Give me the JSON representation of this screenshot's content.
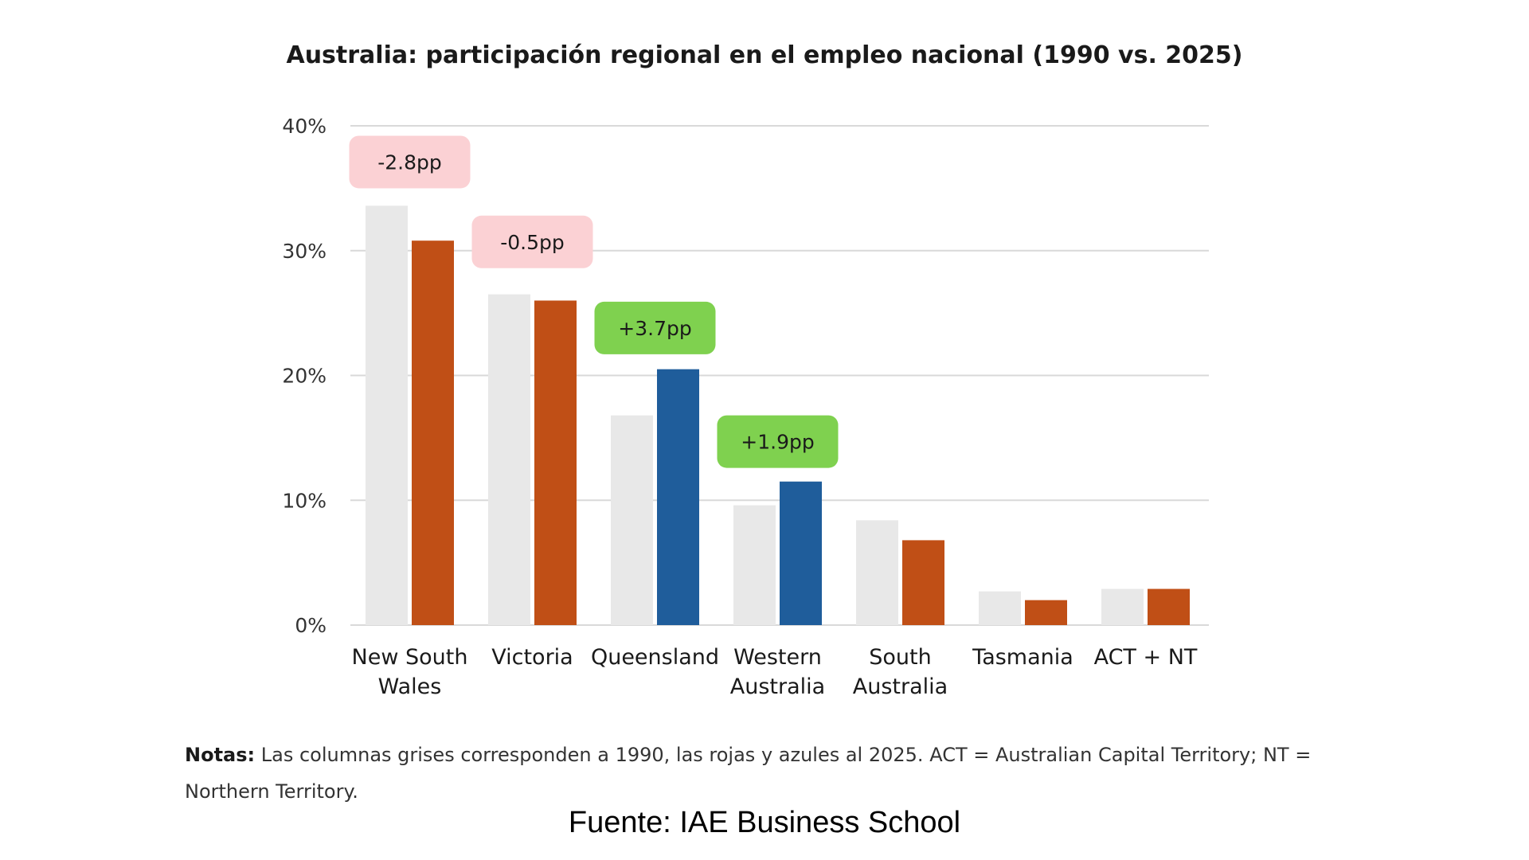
{
  "chart_data": {
    "type": "bar",
    "title": "Australia: participación regional en el empleo nacional (1990 vs. 2025)",
    "categories": [
      [
        "New South",
        "Wales"
      ],
      [
        "Victoria"
      ],
      [
        "Queensland"
      ],
      [
        "Western",
        "Australia"
      ],
      [
        "South",
        "Australia"
      ],
      [
        "Tasmania"
      ],
      [
        "ACT + NT"
      ]
    ],
    "series": [
      {
        "values": [
          33.6,
          26.5,
          16.8,
          9.6,
          8.4,
          2.7,
          2.9
        ],
        "colors": [
          "#e8e8e8",
          "#e8e8e8",
          "#e8e8e8",
          "#e8e8e8",
          "#e8e8e8",
          "#e8e8e8",
          "#e8e8e8"
        ]
      },
      {
        "values": [
          30.8,
          26.0,
          20.5,
          11.5,
          6.8,
          2.0,
          2.9
        ],
        "colors": [
          "#c04f16",
          "#c04f16",
          "#1f5d9b",
          "#1f5d9b",
          "#c04f16",
          "#c04f16",
          "#c04f16"
        ]
      }
    ],
    "ylim": [
      0,
      40
    ],
    "yticks": [
      0,
      10,
      20,
      30,
      40
    ],
    "ytick_labels": [
      "0%",
      "10%",
      "20%",
      "30%",
      "40%"
    ],
    "grid": true,
    "annotations": [
      {
        "category_index": 0,
        "text": "-2.8pp",
        "color": "#fbd1d4",
        "level": 37.1
      },
      {
        "category_index": 1,
        "text": "-0.5pp",
        "color": "#fbd1d4",
        "level": 30.7
      },
      {
        "category_index": 2,
        "text": "+3.7pp",
        "color": "#7fd14f",
        "level": 23.8
      },
      {
        "category_index": 3,
        "text": "+1.9pp",
        "color": "#7fd14f",
        "level": 14.7
      }
    ],
    "grid_color": "#d9d9d9"
  },
  "notes": {
    "label": "Notas:",
    "text": " Las columnas grises corresponden a 1990, las rojas y azules al 2025. ACT = Australian Capital Territory; NT = Northern Territory."
  },
  "source": "Fuente: IAE Business School"
}
